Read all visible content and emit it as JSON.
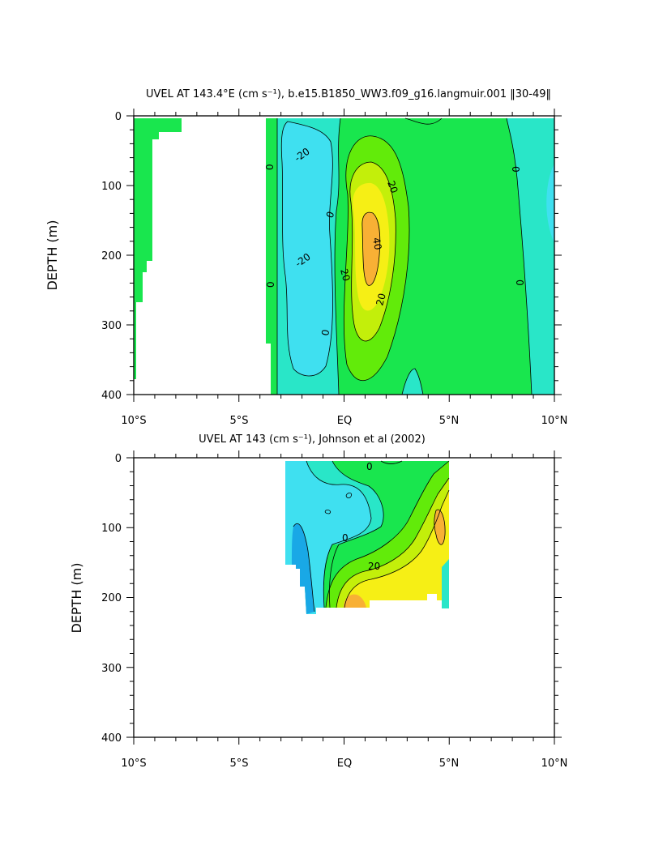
{
  "chart_data": [
    {
      "type": "heatmap",
      "title": "UVEL AT 143.4°E (cm s⁻¹), b.e15.B1850_WW3.f09_g16.langmuir.001 ‖30-49‖",
      "xlabel": "",
      "ylabel": "DEPTH (m)",
      "xlim": [
        -10,
        10
      ],
      "ylim": [
        400,
        0
      ],
      "xtick_labels": [
        "10°S",
        "5°S",
        "EQ",
        "5°N",
        "10°N"
      ],
      "ytick_labels": [
        "0",
        "100",
        "200",
        "300",
        "400"
      ],
      "contour_labels": [
        "-20",
        "0",
        "-20",
        "0",
        "0",
        "0",
        "20",
        "40",
        "20",
        "20",
        "0",
        "0"
      ],
      "cell_values_cm_s": [
        {
          "lat": -7.5,
          "depth_range": [
            10,
            400
          ],
          "u": 5
        },
        {
          "lat": -6.5,
          "depth_range": [
            10,
            400
          ],
          "u": -5
        },
        {
          "lat": -5.0,
          "depth_range": [
            60,
            240
          ],
          "u": -25
        },
        {
          "lat": 0.5,
          "depth_range": [
            130,
            250
          ],
          "u": 45
        },
        {
          "lat": 1.0,
          "depth_range": [
            80,
            330
          ],
          "u": 25
        },
        {
          "lat": 6.0,
          "depth_range": [
            10,
            400
          ],
          "u": 5
        },
        {
          "lat": 9.5,
          "depth_range": [
            80,
            160
          ],
          "u": -5
        }
      ],
      "colors": {
        "neg40": "#19a8e6",
        "neg20": "#3fe0f0",
        "neg0": "#29e6c8",
        "pos0": "#19e64e",
        "pos10": "#62eb0a",
        "pos20": "#c3ef0a",
        "pos30": "#f6ef15",
        "pos40": "#f8b035"
      }
    },
    {
      "type": "heatmap",
      "title": "UVEL AT 143 (cm s⁻¹), Johnson et al (2002)",
      "xlabel": "",
      "ylabel": "DEPTH (m)",
      "xlim": [
        -10,
        10
      ],
      "ylim": [
        400,
        0
      ],
      "xtick_labels": [
        "10°S",
        "5°S",
        "EQ",
        "5°N",
        "10°N"
      ],
      "ytick_labels": [
        "0",
        "100",
        "200",
        "300",
        "400"
      ],
      "contour_labels": [
        "0",
        "0",
        "20"
      ],
      "data_extent": {
        "lat": [
          -2.8,
          5.0
        ],
        "depth": [
          10,
          225
        ]
      },
      "cell_values_cm_s": [
        {
          "lat": -1.5,
          "depth_range": [
            10,
            220
          ],
          "u": -25
        },
        {
          "lat": 0.5,
          "depth_range": [
            10,
            100
          ],
          "u": -5
        },
        {
          "lat": 0.5,
          "depth_range": [
            200,
            220
          ],
          "u": 35
        },
        {
          "lat": 3.5,
          "depth_range": [
            60,
            200
          ],
          "u": 25
        },
        {
          "lat": 4.5,
          "depth_range": [
            80,
            120
          ],
          "u": 32
        }
      ]
    }
  ]
}
